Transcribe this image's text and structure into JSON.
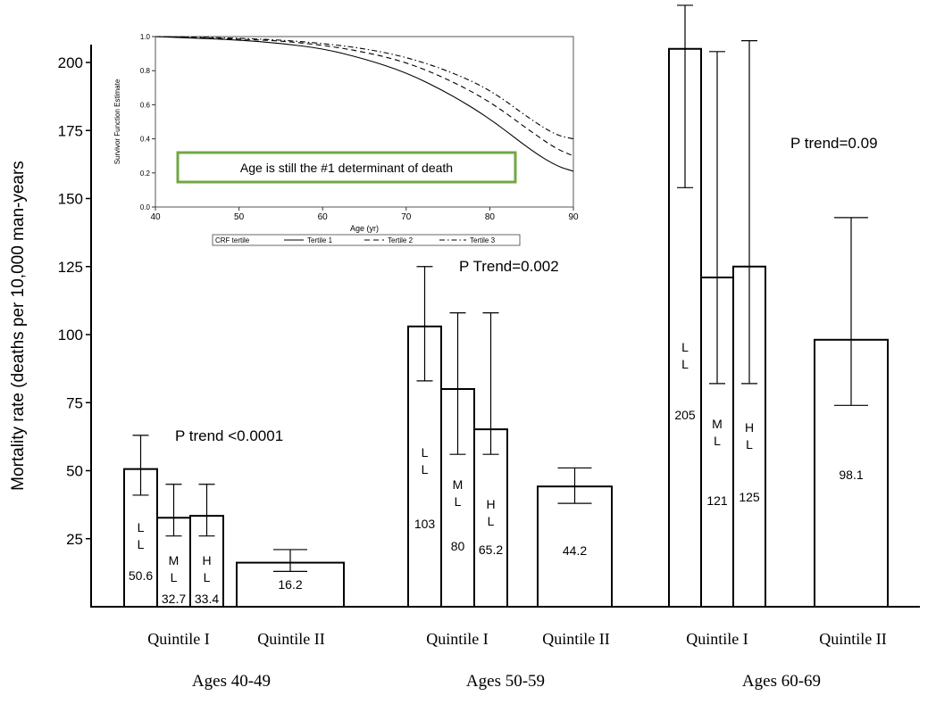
{
  "chart_data": [
    {
      "type": "bar",
      "ylabel": "Mortality rate (deaths per 10,000 man-years",
      "ylim": [
        0,
        200
      ],
      "yticks": [
        25,
        50,
        75,
        100,
        125,
        150,
        175,
        200
      ],
      "groups": [
        {
          "label": "Ages 40-49",
          "trend": "P trend <0.0001",
          "subgroups": [
            {
              "label": "Quintile  I",
              "bars": [
                {
                  "code": [
                    "L",
                    "L"
                  ],
                  "value": 50.6,
                  "value_label": "50.6",
                  "ci": [
                    41,
                    63
                  ]
                },
                {
                  "code": [
                    "M",
                    "L"
                  ],
                  "value": 32.7,
                  "value_label": "32.7",
                  "ci": [
                    26,
                    45
                  ]
                },
                {
                  "code": [
                    "H",
                    "L"
                  ],
                  "value": 33.4,
                  "value_label": "33.4",
                  "ci": [
                    26,
                    45
                  ]
                }
              ]
            },
            {
              "label": "Quintile  II",
              "bars": [
                {
                  "code": [],
                  "value": 16.2,
                  "value_label": "16.2",
                  "ci": [
                    13,
                    21
                  ]
                }
              ]
            }
          ]
        },
        {
          "label": "Ages 50-59",
          "trend": "P Trend=0.002",
          "subgroups": [
            {
              "label": "Quintile  I",
              "bars": [
                {
                  "code": [
                    "L",
                    "L"
                  ],
                  "value": 103,
                  "value_label": "103",
                  "ci": [
                    83,
                    125
                  ]
                },
                {
                  "code": [
                    "M",
                    "L"
                  ],
                  "value": 80,
                  "value_label": "80",
                  "ci": [
                    56,
                    108
                  ]
                },
                {
                  "code": [
                    "H",
                    "L"
                  ],
                  "value": 65.2,
                  "value_label": "65.2",
                  "ci": [
                    56,
                    108
                  ]
                }
              ]
            },
            {
              "label": "Quintile  II",
              "bars": [
                {
                  "code": [],
                  "value": 44.2,
                  "value_label": "44.2",
                  "ci": [
                    38,
                    51
                  ]
                }
              ]
            }
          ]
        },
        {
          "label": "Ages 60-69",
          "trend": "P trend=0.09",
          "subgroups": [
            {
              "label": "Quintile  I",
              "bars": [
                {
                  "code": [
                    "L",
                    "L"
                  ],
                  "value": 205,
                  "value_label": "205",
                  "ci": [
                    154,
                    221
                  ]
                },
                {
                  "code": [
                    "M",
                    "L"
                  ],
                  "value": 121,
                  "value_label": "121",
                  "ci": [
                    82,
                    204
                  ]
                },
                {
                  "code": [
                    "H",
                    "L"
                  ],
                  "value": 125,
                  "value_label": "125",
                  "ci": [
                    82,
                    208
                  ]
                }
              ]
            },
            {
              "label": "Quintile  II",
              "bars": [
                {
                  "code": [],
                  "value": 98.1,
                  "value_label": "98.1",
                  "ci": [
                    74,
                    143
                  ]
                }
              ]
            }
          ]
        }
      ]
    },
    {
      "type": "line",
      "xlabel": "Age (yr)",
      "ylabel": "Survivor Function Estimate",
      "xlim": [
        40,
        90
      ],
      "ylim": [
        0,
        1.0
      ],
      "xticks": [
        40,
        50,
        60,
        70,
        80,
        90
      ],
      "yticks": [
        "0.0",
        "0.2",
        "0.4",
        "0.6",
        "0.8",
        "1.0"
      ],
      "legend_title": "CRF tertile",
      "callout": "Age is still the #1 determinant of death",
      "x": [
        40,
        45,
        50,
        55,
        60,
        65,
        70,
        75,
        80,
        85,
        88,
        90
      ],
      "series": [
        {
          "name": "Tertile 1",
          "style": "solid",
          "values": [
            1.0,
            0.99,
            0.98,
            0.96,
            0.93,
            0.87,
            0.79,
            0.67,
            0.52,
            0.33,
            0.24,
            0.21
          ]
        },
        {
          "name": "Tertile 2",
          "style": "dashed",
          "values": [
            1.0,
            0.995,
            0.985,
            0.975,
            0.95,
            0.91,
            0.85,
            0.75,
            0.62,
            0.44,
            0.34,
            0.3
          ]
        },
        {
          "name": "Tertile 3",
          "style": "dashdot",
          "values": [
            1.0,
            0.997,
            0.99,
            0.98,
            0.96,
            0.93,
            0.88,
            0.8,
            0.69,
            0.51,
            0.42,
            0.4
          ]
        }
      ]
    }
  ]
}
